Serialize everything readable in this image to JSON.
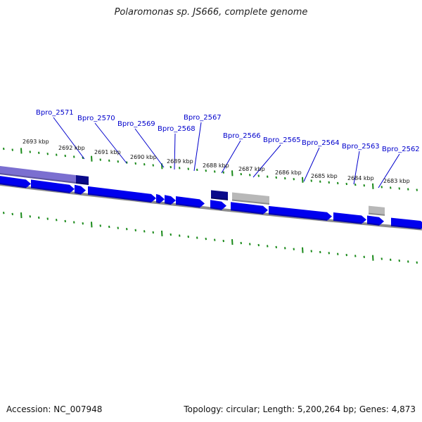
{
  "title": "Polaromonas sp. JS666, complete genome",
  "accession": "Accession: NC_007948",
  "summary": "Topology: circular; Length: 5,200,264 bp; Genes: 4,873",
  "colors": {
    "gene_forward": "#0000ee",
    "gene_reverse": "#0a0a8a",
    "gene_highlight": "#7b6fd0",
    "gene_grey": "#b8b8b8",
    "backbone": "#8c8c8c",
    "tick": "#1a8a1a",
    "label": "#0000cc"
  },
  "kbp_labels": [
    "2693 kbp",
    "2692 kbp",
    "2691 kbp",
    "2690 kbp",
    "2689 kbp",
    "2688 kbp",
    "2687 kbp",
    "2686 kbp",
    "2685 kbp",
    "2684 kbp",
    "2683 kbp"
  ],
  "gene_labels": [
    "Bpro_2571",
    "Bpro_2570",
    "Bpro_2569",
    "Bpro_2568",
    "Bpro_2567",
    "Bpro_2566",
    "Bpro_2565",
    "Bpro_2564",
    "Bpro_2563",
    "Bpro_2562"
  ]
}
